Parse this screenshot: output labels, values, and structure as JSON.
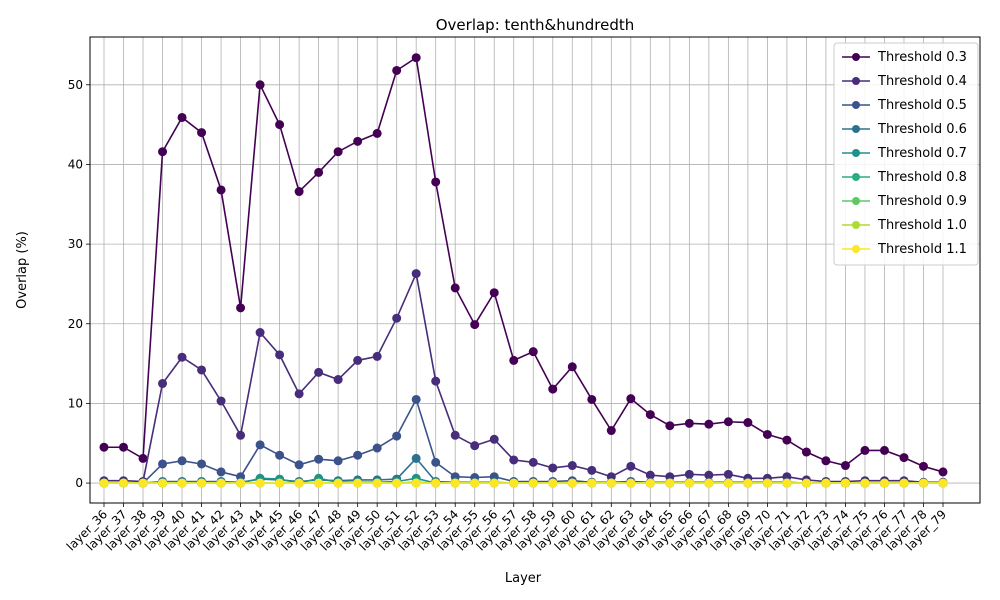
{
  "chart_data": {
    "type": "line",
    "title": "Overlap: tenth&hundredth",
    "xlabel": "Layer",
    "ylabel": "Overlap (%)",
    "ylim": [
      -2.5,
      56
    ],
    "yticks": [
      0,
      10,
      20,
      30,
      40,
      50
    ],
    "grid": true,
    "legend_position": "top-right",
    "categories": [
      "layer_36",
      "layer_37",
      "layer_38",
      "layer_39",
      "layer_40",
      "layer_41",
      "layer_42",
      "layer_43",
      "layer_44",
      "layer_45",
      "layer_46",
      "layer_47",
      "layer_48",
      "layer_49",
      "layer_50",
      "layer_51",
      "layer_52",
      "layer_53",
      "layer_54",
      "layer_55",
      "layer_56",
      "layer_57",
      "layer_58",
      "layer_59",
      "layer_60",
      "layer_61",
      "layer_62",
      "layer_63",
      "layer_64",
      "layer_65",
      "layer_66",
      "layer_67",
      "layer_68",
      "layer_69",
      "layer_70",
      "layer_71",
      "layer_72",
      "layer_73",
      "layer_74",
      "layer_75",
      "layer_76",
      "layer_77",
      "layer_78",
      "layer_79"
    ],
    "series": [
      {
        "name": "Threshold 0.3",
        "color": "#440154",
        "values": [
          4.5,
          4.5,
          3.1,
          41.6,
          45.9,
          44.0,
          36.8,
          22.0,
          50.0,
          45.0,
          36.6,
          39.0,
          41.6,
          42.9,
          43.9,
          51.8,
          53.4,
          37.8,
          24.5,
          19.9,
          23.9,
          15.4,
          16.5,
          11.8,
          14.6,
          10.5,
          6.6,
          10.6,
          8.6,
          7.2,
          7.5,
          7.4,
          7.7,
          7.6,
          6.1,
          5.4,
          3.9,
          2.8,
          2.2,
          4.1,
          4.1,
          3.2,
          2.1,
          1.4
        ]
      },
      {
        "name": "Threshold 0.4",
        "color": "#472d7b",
        "values": [
          0.3,
          0.3,
          0.2,
          12.5,
          15.8,
          14.2,
          10.3,
          6.0,
          18.9,
          16.1,
          11.2,
          13.9,
          13.0,
          15.4,
          15.9,
          20.7,
          26.3,
          12.8,
          6.0,
          4.7,
          5.5,
          2.9,
          2.6,
          1.9,
          2.2,
          1.6,
          0.8,
          2.1,
          1.0,
          0.8,
          1.1,
          1.0,
          1.1,
          0.6,
          0.6,
          0.8,
          0.4,
          0.2,
          0.2,
          0.3,
          0.3,
          0.3,
          0.1,
          0.1
        ]
      },
      {
        "name": "Threshold 0.5",
        "color": "#3b528b",
        "values": [
          0.0,
          0.0,
          0.0,
          2.4,
          2.8,
          2.4,
          1.4,
          0.8,
          4.8,
          3.5,
          2.3,
          3.0,
          2.8,
          3.5,
          4.4,
          5.9,
          10.5,
          2.6,
          0.8,
          0.7,
          0.8,
          0.2,
          0.2,
          0.2,
          0.3,
          0.1,
          0.1,
          0.2,
          0.1,
          0.1,
          0.1,
          0.1,
          0.1,
          0.1,
          0.1,
          0.1,
          0.0,
          0.0,
          0.0,
          0.0,
          0.0,
          0.0,
          0.0,
          0.0
        ]
      },
      {
        "name": "Threshold 0.6",
        "color": "#2c728e",
        "values": [
          0.0,
          0.0,
          0.0,
          0.2,
          0.2,
          0.2,
          0.2,
          0.1,
          0.5,
          0.4,
          0.2,
          0.4,
          0.3,
          0.4,
          0.4,
          0.5,
          3.1,
          0.2,
          0.1,
          0.1,
          0.1,
          0.0,
          0.0,
          0.0,
          0.0,
          0.0,
          0.0,
          0.0,
          0.0,
          0.0,
          0.0,
          0.0,
          0.0,
          0.0,
          0.0,
          0.0,
          0.0,
          0.0,
          0.0,
          0.0,
          0.0,
          0.0,
          0.0,
          0.0
        ]
      },
      {
        "name": "Threshold 0.7",
        "color": "#21918c",
        "values": [
          0.0,
          0.0,
          0.0,
          0.0,
          0.0,
          0.0,
          0.0,
          0.0,
          0.6,
          0.5,
          0.0,
          0.6,
          0.1,
          0.1,
          0.1,
          0.2,
          0.6,
          0.0,
          0.0,
          0.0,
          0.0,
          0.0,
          0.0,
          0.0,
          0.0,
          0.0,
          0.0,
          0.0,
          0.0,
          0.0,
          0.0,
          0.0,
          0.0,
          0.0,
          0.0,
          0.0,
          0.0,
          0.0,
          0.0,
          0.0,
          0.0,
          0.0,
          0.0,
          0.0
        ]
      },
      {
        "name": "Threshold 0.8",
        "color": "#28ae80",
        "values": [
          0.0,
          0.0,
          0.0,
          0.0,
          0.0,
          0.0,
          0.0,
          0.0,
          0.0,
          0.0,
          0.0,
          0.0,
          0.0,
          0.0,
          0.0,
          0.0,
          0.1,
          0.0,
          0.0,
          0.0,
          0.0,
          0.0,
          0.0,
          0.0,
          0.0,
          0.0,
          0.0,
          0.0,
          0.0,
          0.0,
          0.0,
          0.0,
          0.0,
          0.0,
          0.0,
          0.0,
          0.0,
          0.0,
          0.0,
          0.0,
          0.0,
          0.0,
          0.0,
          0.0
        ]
      },
      {
        "name": "Threshold 0.9",
        "color": "#5ec962",
        "values": [
          0.0,
          0.0,
          0.0,
          0.0,
          0.0,
          0.0,
          0.0,
          0.0,
          0.0,
          0.0,
          0.0,
          0.0,
          0.0,
          0.0,
          0.0,
          0.0,
          0.0,
          0.0,
          0.0,
          0.0,
          0.0,
          0.0,
          0.0,
          0.0,
          0.0,
          0.0,
          0.0,
          0.0,
          0.0,
          0.0,
          0.0,
          0.0,
          0.0,
          0.0,
          0.0,
          0.0,
          0.0,
          0.0,
          0.0,
          0.0,
          0.0,
          0.0,
          0.0,
          0.0
        ]
      },
      {
        "name": "Threshold 1.0",
        "color": "#addc30",
        "values": [
          0.0,
          0.0,
          0.0,
          0.0,
          0.0,
          0.0,
          0.0,
          0.0,
          0.0,
          0.0,
          0.0,
          0.0,
          0.0,
          0.0,
          0.0,
          0.0,
          0.0,
          0.0,
          0.0,
          0.0,
          0.0,
          0.0,
          0.0,
          0.0,
          0.0,
          0.0,
          0.0,
          0.0,
          0.0,
          0.0,
          0.0,
          0.0,
          0.0,
          0.0,
          0.0,
          0.0,
          0.0,
          0.0,
          0.0,
          0.0,
          0.0,
          0.0,
          0.0,
          0.0
        ]
      },
      {
        "name": "Threshold 1.1",
        "color": "#fde725",
        "values": [
          0.0,
          0.0,
          0.0,
          0.0,
          0.0,
          0.0,
          0.0,
          0.0,
          0.0,
          0.0,
          0.0,
          0.0,
          0.0,
          0.0,
          0.0,
          0.0,
          0.0,
          0.0,
          0.0,
          0.0,
          0.0,
          0.0,
          0.0,
          0.0,
          0.0,
          0.0,
          0.0,
          0.0,
          0.0,
          0.0,
          0.0,
          0.0,
          0.0,
          0.0,
          0.0,
          0.0,
          0.0,
          0.0,
          0.0,
          0.0,
          0.0,
          0.0,
          0.0,
          0.0
        ]
      }
    ]
  }
}
